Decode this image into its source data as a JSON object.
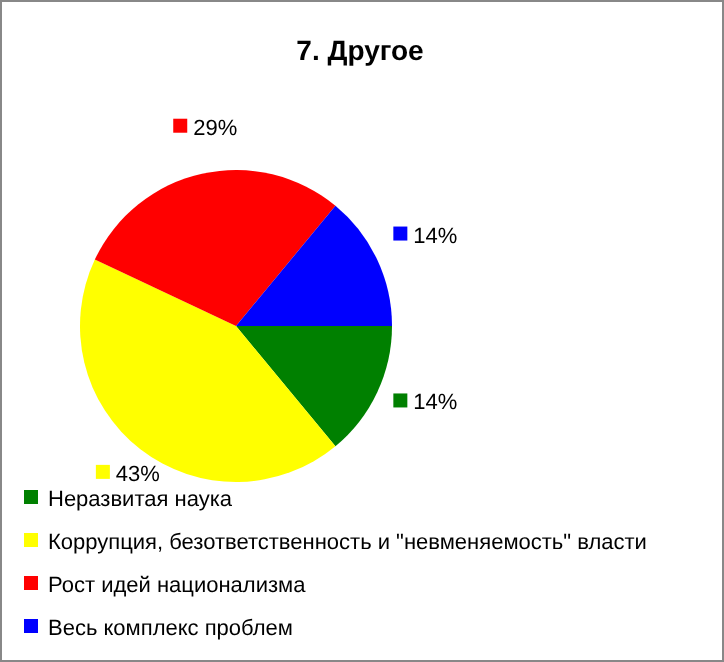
{
  "chart_data": {
    "type": "pie",
    "title": "7. Другое",
    "categories": [
      "Неразвитая наука",
      "Коррупция, безответственность и \"невменяемость\" власти",
      "Рост идей национализма",
      "Весь комплекс проблем"
    ],
    "values": [
      14,
      43,
      29,
      14
    ],
    "value_labels": [
      "14%",
      "43%",
      "29%",
      "14%"
    ],
    "colors": [
      "#008000",
      "#ffff00",
      "#ff0000",
      "#0000ff"
    ],
    "legend": "bottom"
  }
}
